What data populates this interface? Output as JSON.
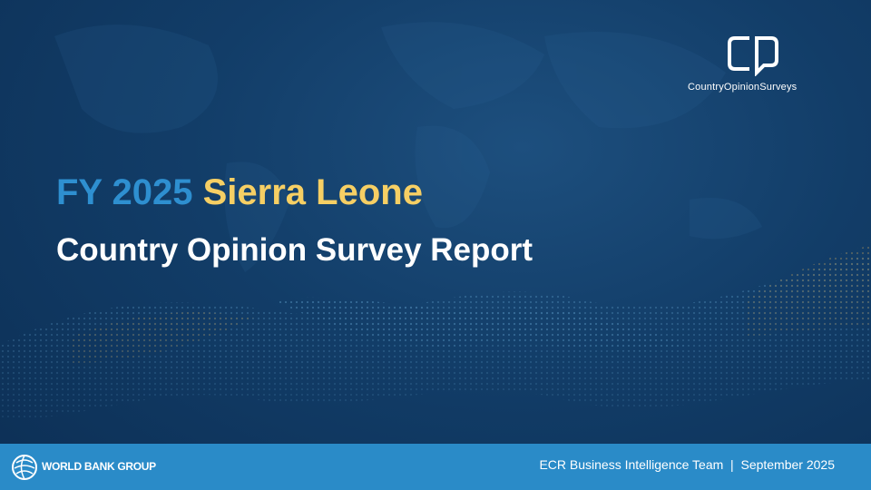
{
  "logo": {
    "text": "CountryOpinionSurveys"
  },
  "title": {
    "prefix": "FY 2025",
    "country": "Sierra Leone"
  },
  "subtitle": "Country Opinion Survey Report",
  "footer": {
    "organization": "WORLD BANK GROUP",
    "credit": "ECR Business Intelligence Team  |  September 2025"
  }
}
